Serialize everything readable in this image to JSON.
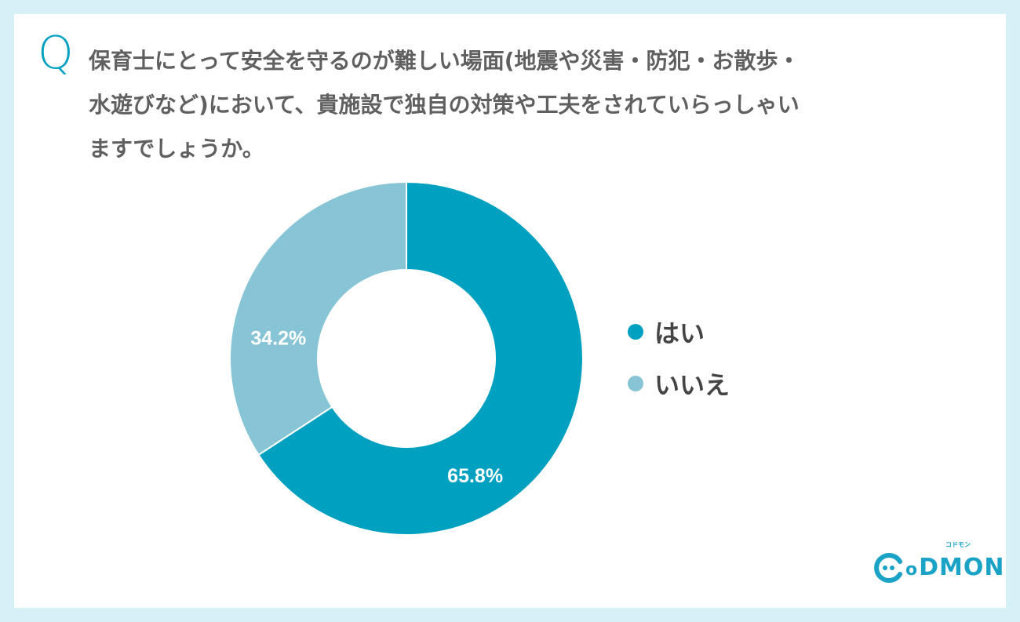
{
  "question": {
    "marker": "Q",
    "lines": [
      "保育士にとって安全を守るのが難しい場面(地震や災害・防犯・お散歩・",
      "水遊びなど)において、貴施設で独自の対策や工夫をされていらっしゃい",
      "ますでしょうか。"
    ]
  },
  "chart_data": {
    "type": "pie",
    "variant": "donut",
    "title": "保育士にとって安全を守るのが難しい場面(地震や災害・防犯・お散歩・水遊びなど)において、貴施設で独自の対策や工夫をされていらっしゃいますでしょうか。",
    "categories": [
      "はい",
      "いいえ"
    ],
    "values": [
      65.8,
      34.2
    ],
    "labels": [
      "65.8%",
      "34.2%"
    ],
    "colors": [
      "#00a0c1",
      "#86c4d6"
    ],
    "legend_position": "right"
  },
  "logo": {
    "text": "CODMON",
    "tagline": "コドモン"
  }
}
